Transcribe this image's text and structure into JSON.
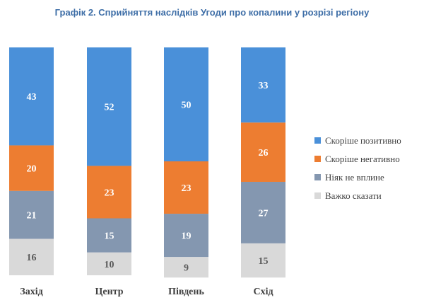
{
  "title": "Графік 2. Сприйняття наслідків Угоди про копалини у розрізі регіону",
  "chart_data": {
    "type": "bar",
    "stacked": true,
    "categories": [
      "Захід",
      "Центр",
      "Південь",
      "Схід"
    ],
    "series": [
      {
        "name": "Скоріше позитивно",
        "color": "#4a90d9",
        "values": [
          43,
          52,
          50,
          33
        ]
      },
      {
        "name": "Скоріше негативно",
        "color": "#ed7d31",
        "values": [
          20,
          23,
          23,
          26
        ]
      },
      {
        "name": "Ніяк не вплине",
        "color": "#8497b0",
        "values": [
          21,
          15,
          19,
          27
        ]
      },
      {
        "name": "Важко сказати",
        "color": "#d9d9d9",
        "values": [
          16,
          10,
          9,
          15
        ]
      }
    ],
    "ylim": [
      0,
      100
    ],
    "grid": false,
    "legend": "right"
  }
}
